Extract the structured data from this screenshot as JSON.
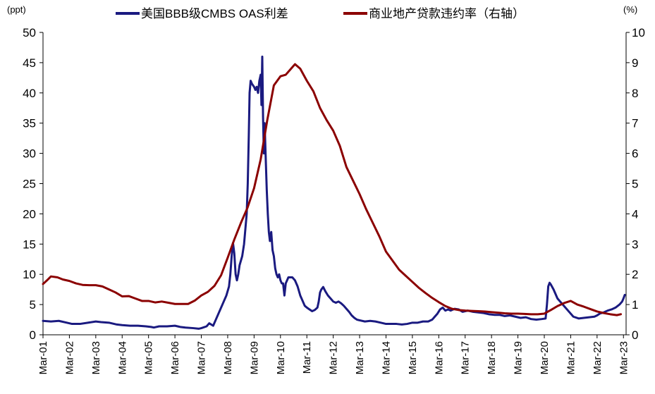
{
  "chart_data": {
    "type": "line",
    "title": "",
    "left_axis": {
      "unit": "(ppt)",
      "ylim": [
        0,
        50
      ],
      "ticks": [
        0,
        5,
        10,
        15,
        20,
        25,
        30,
        35,
        40,
        45,
        50
      ]
    },
    "right_axis": {
      "unit": "(%)",
      "ylim": [
        0,
        10
      ],
      "ticks": [
        0,
        1,
        2,
        3,
        4,
        5,
        6,
        7,
        8,
        9,
        10
      ]
    },
    "x_axis": {
      "ticks": [
        "Mar-01",
        "Mar-02",
        "Mar-03",
        "Mar-04",
        "Mar-05",
        "Mar-06",
        "Mar-07",
        "Mar-08",
        "Mar-09",
        "Mar-10",
        "Mar-11",
        "Mar-12",
        "Mar-13",
        "Mar-14",
        "Mar-15",
        "Mar-16",
        "Mar-17",
        "Mar-18",
        "Mar-19",
        "Mar-20",
        "Mar-21",
        "Mar-22",
        "Mar-23"
      ],
      "range": [
        2001.0,
        2023.1
      ]
    },
    "legend_position": "top",
    "grid": false,
    "series": [
      {
        "name": "美国BBB级CMBS OAS利差",
        "axis": "left",
        "color": "#1a1a80",
        "points": [
          [
            2001.0,
            2.3
          ],
          [
            2001.3,
            2.2
          ],
          [
            2001.6,
            2.3
          ],
          [
            2001.9,
            2.0
          ],
          [
            2002.1,
            1.8
          ],
          [
            2002.4,
            1.8
          ],
          [
            2002.7,
            2.0
          ],
          [
            2003.0,
            2.2
          ],
          [
            2003.2,
            2.1
          ],
          [
            2003.5,
            2.0
          ],
          [
            2003.8,
            1.7
          ],
          [
            2004.0,
            1.6
          ],
          [
            2004.3,
            1.5
          ],
          [
            2004.6,
            1.5
          ],
          [
            2004.9,
            1.4
          ],
          [
            2005.1,
            1.3
          ],
          [
            2005.2,
            1.2
          ],
          [
            2005.4,
            1.4
          ],
          [
            2005.7,
            1.4
          ],
          [
            2006.0,
            1.5
          ],
          [
            2006.2,
            1.3
          ],
          [
            2006.4,
            1.2
          ],
          [
            2006.7,
            1.1
          ],
          [
            2006.9,
            1.0
          ],
          [
            2007.0,
            1.1
          ],
          [
            2007.2,
            1.4
          ],
          [
            2007.3,
            1.9
          ],
          [
            2007.45,
            1.5
          ],
          [
            2007.55,
            2.5
          ],
          [
            2007.7,
            4.0
          ],
          [
            2007.85,
            5.5
          ],
          [
            2007.95,
            6.5
          ],
          [
            2008.05,
            8.0
          ],
          [
            2008.1,
            10.0
          ],
          [
            2008.15,
            13.0
          ],
          [
            2008.2,
            15.2
          ],
          [
            2008.25,
            13.5
          ],
          [
            2008.3,
            10.0
          ],
          [
            2008.35,
            9.0
          ],
          [
            2008.4,
            10.0
          ],
          [
            2008.45,
            11.5
          ],
          [
            2008.55,
            13.0
          ],
          [
            2008.62,
            15.0
          ],
          [
            2008.67,
            17.5
          ],
          [
            2008.72,
            20.0
          ],
          [
            2008.76,
            25.0
          ],
          [
            2008.8,
            33.0
          ],
          [
            2008.83,
            40.0
          ],
          [
            2008.87,
            42.0
          ],
          [
            2008.92,
            41.5
          ],
          [
            2009.0,
            41.0
          ],
          [
            2009.05,
            40.5
          ],
          [
            2009.1,
            41.0
          ],
          [
            2009.15,
            40.0
          ],
          [
            2009.2,
            42.0
          ],
          [
            2009.25,
            43.0
          ],
          [
            2009.28,
            38.0
          ],
          [
            2009.31,
            46.0
          ],
          [
            2009.34,
            36.0
          ],
          [
            2009.37,
            30.0
          ],
          [
            2009.4,
            35.0
          ],
          [
            2009.45,
            28.0
          ],
          [
            2009.48,
            24.0
          ],
          [
            2009.52,
            20.0
          ],
          [
            2009.56,
            17.0
          ],
          [
            2009.6,
            15.5
          ],
          [
            2009.65,
            17.0
          ],
          [
            2009.7,
            14.0
          ],
          [
            2009.75,
            13.0
          ],
          [
            2009.8,
            11.0
          ],
          [
            2009.85,
            10.0
          ],
          [
            2009.9,
            9.5
          ],
          [
            2009.95,
            10.0
          ],
          [
            2010.0,
            9.0
          ],
          [
            2010.05,
            8.5
          ],
          [
            2010.1,
            8.5
          ],
          [
            2010.15,
            6.5
          ],
          [
            2010.2,
            8.5
          ],
          [
            2010.3,
            9.5
          ],
          [
            2010.45,
            9.5
          ],
          [
            2010.55,
            9.0
          ],
          [
            2010.65,
            8.0
          ],
          [
            2010.75,
            6.5
          ],
          [
            2010.85,
            5.5
          ],
          [
            2010.92,
            4.8
          ],
          [
            2011.0,
            4.5
          ],
          [
            2011.1,
            4.2
          ],
          [
            2011.2,
            3.9
          ],
          [
            2011.3,
            4.1
          ],
          [
            2011.4,
            4.5
          ],
          [
            2011.45,
            5.5
          ],
          [
            2011.5,
            7.0
          ],
          [
            2011.55,
            7.5
          ],
          [
            2011.62,
            7.9
          ],
          [
            2011.7,
            7.2
          ],
          [
            2011.8,
            6.5
          ],
          [
            2011.9,
            6.0
          ],
          [
            2012.0,
            5.5
          ],
          [
            2012.1,
            5.3
          ],
          [
            2012.2,
            5.5
          ],
          [
            2012.3,
            5.2
          ],
          [
            2012.4,
            4.8
          ],
          [
            2012.5,
            4.3
          ],
          [
            2012.6,
            3.8
          ],
          [
            2012.7,
            3.2
          ],
          [
            2012.8,
            2.8
          ],
          [
            2012.9,
            2.5
          ],
          [
            2013.0,
            2.4
          ],
          [
            2013.2,
            2.2
          ],
          [
            2013.4,
            2.3
          ],
          [
            2013.6,
            2.2
          ],
          [
            2013.8,
            2.0
          ],
          [
            2014.0,
            1.8
          ],
          [
            2014.2,
            1.8
          ],
          [
            2014.4,
            1.8
          ],
          [
            2014.6,
            1.7
          ],
          [
            2014.8,
            1.8
          ],
          [
            2015.0,
            2.0
          ],
          [
            2015.2,
            2.0
          ],
          [
            2015.4,
            2.2
          ],
          [
            2015.6,
            2.2
          ],
          [
            2015.75,
            2.5
          ],
          [
            2015.85,
            3.0
          ],
          [
            2015.95,
            3.5
          ],
          [
            2016.05,
            4.2
          ],
          [
            2016.15,
            4.5
          ],
          [
            2016.25,
            4.0
          ],
          [
            2016.35,
            4.2
          ],
          [
            2016.45,
            4.0
          ],
          [
            2016.6,
            4.3
          ],
          [
            2016.75,
            4.2
          ],
          [
            2016.9,
            3.8
          ],
          [
            2017.1,
            4.0
          ],
          [
            2017.3,
            3.8
          ],
          [
            2017.5,
            3.7
          ],
          [
            2017.7,
            3.6
          ],
          [
            2017.9,
            3.4
          ],
          [
            2018.1,
            3.3
          ],
          [
            2018.3,
            3.3
          ],
          [
            2018.5,
            3.1
          ],
          [
            2018.7,
            3.2
          ],
          [
            2018.9,
            3.0
          ],
          [
            2019.1,
            2.8
          ],
          [
            2019.3,
            2.9
          ],
          [
            2019.5,
            2.6
          ],
          [
            2019.7,
            2.5
          ],
          [
            2019.9,
            2.6
          ],
          [
            2020.05,
            2.7
          ],
          [
            2020.1,
            5.0
          ],
          [
            2020.15,
            8.0
          ],
          [
            2020.2,
            8.6
          ],
          [
            2020.25,
            8.3
          ],
          [
            2020.35,
            7.5
          ],
          [
            2020.5,
            6.0
          ],
          [
            2020.7,
            5.0
          ],
          [
            2020.9,
            4.0
          ],
          [
            2021.1,
            3.0
          ],
          [
            2021.3,
            2.7
          ],
          [
            2021.5,
            2.8
          ],
          [
            2021.7,
            2.9
          ],
          [
            2021.9,
            3.0
          ],
          [
            2022.0,
            3.2
          ],
          [
            2022.1,
            3.5
          ],
          [
            2022.25,
            3.7
          ],
          [
            2022.4,
            4.0
          ],
          [
            2022.55,
            4.2
          ],
          [
            2022.7,
            4.5
          ],
          [
            2022.85,
            5.0
          ],
          [
            2022.95,
            5.5
          ],
          [
            2023.0,
            6.0
          ],
          [
            2023.05,
            6.6
          ]
        ]
      },
      {
        "name": "商业地产贷款违约率（右轴）",
        "axis": "right",
        "color": "#8b0000",
        "points": [
          [
            2001.0,
            1.68
          ],
          [
            2001.15,
            1.8
          ],
          [
            2001.3,
            1.93
          ],
          [
            2001.55,
            1.9
          ],
          [
            2001.75,
            1.83
          ],
          [
            2002.0,
            1.78
          ],
          [
            2002.25,
            1.7
          ],
          [
            2002.5,
            1.65
          ],
          [
            2002.75,
            1.64
          ],
          [
            2003.0,
            1.64
          ],
          [
            2003.25,
            1.6
          ],
          [
            2003.5,
            1.5
          ],
          [
            2003.75,
            1.4
          ],
          [
            2004.0,
            1.27
          ],
          [
            2004.25,
            1.28
          ],
          [
            2004.5,
            1.2
          ],
          [
            2004.75,
            1.12
          ],
          [
            2005.0,
            1.12
          ],
          [
            2005.25,
            1.07
          ],
          [
            2005.5,
            1.1
          ],
          [
            2005.75,
            1.06
          ],
          [
            2006.0,
            1.02
          ],
          [
            2006.25,
            1.02
          ],
          [
            2006.5,
            1.02
          ],
          [
            2006.75,
            1.13
          ],
          [
            2007.0,
            1.3
          ],
          [
            2007.25,
            1.42
          ],
          [
            2007.5,
            1.62
          ],
          [
            2007.75,
            1.97
          ],
          [
            2008.0,
            2.55
          ],
          [
            2008.25,
            3.15
          ],
          [
            2008.5,
            3.7
          ],
          [
            2008.75,
            4.2
          ],
          [
            2009.0,
            4.85
          ],
          [
            2009.25,
            5.8
          ],
          [
            2009.5,
            7.1
          ],
          [
            2009.75,
            8.25
          ],
          [
            2010.0,
            8.55
          ],
          [
            2010.2,
            8.6
          ],
          [
            2010.4,
            8.8
          ],
          [
            2010.55,
            8.95
          ],
          [
            2010.75,
            8.8
          ],
          [
            2011.0,
            8.4
          ],
          [
            2011.25,
            8.05
          ],
          [
            2011.5,
            7.5
          ],
          [
            2011.75,
            7.1
          ],
          [
            2012.0,
            6.75
          ],
          [
            2012.25,
            6.25
          ],
          [
            2012.5,
            5.55
          ],
          [
            2012.75,
            5.1
          ],
          [
            2013.0,
            4.65
          ],
          [
            2013.25,
            4.15
          ],
          [
            2013.5,
            3.7
          ],
          [
            2013.75,
            3.25
          ],
          [
            2014.0,
            2.75
          ],
          [
            2014.25,
            2.45
          ],
          [
            2014.5,
            2.15
          ],
          [
            2014.75,
            1.95
          ],
          [
            2015.0,
            1.75
          ],
          [
            2015.25,
            1.55
          ],
          [
            2015.5,
            1.38
          ],
          [
            2015.75,
            1.22
          ],
          [
            2016.0,
            1.08
          ],
          [
            2016.25,
            0.95
          ],
          [
            2016.5,
            0.86
          ],
          [
            2016.75,
            0.82
          ],
          [
            2017.0,
            0.8
          ],
          [
            2017.25,
            0.79
          ],
          [
            2017.5,
            0.78
          ],
          [
            2017.75,
            0.77
          ],
          [
            2018.0,
            0.75
          ],
          [
            2018.25,
            0.73
          ],
          [
            2018.5,
            0.71
          ],
          [
            2018.75,
            0.7
          ],
          [
            2019.0,
            0.7
          ],
          [
            2019.25,
            0.69
          ],
          [
            2019.5,
            0.68
          ],
          [
            2019.75,
            0.68
          ],
          [
            2020.0,
            0.7
          ],
          [
            2020.25,
            0.82
          ],
          [
            2020.5,
            0.95
          ],
          [
            2020.75,
            1.05
          ],
          [
            2021.0,
            1.12
          ],
          [
            2021.25,
            1.0
          ],
          [
            2021.5,
            0.93
          ],
          [
            2021.75,
            0.85
          ],
          [
            2022.0,
            0.77
          ],
          [
            2022.25,
            0.72
          ],
          [
            2022.5,
            0.68
          ],
          [
            2022.75,
            0.65
          ],
          [
            2022.9,
            0.68
          ]
        ]
      }
    ]
  }
}
